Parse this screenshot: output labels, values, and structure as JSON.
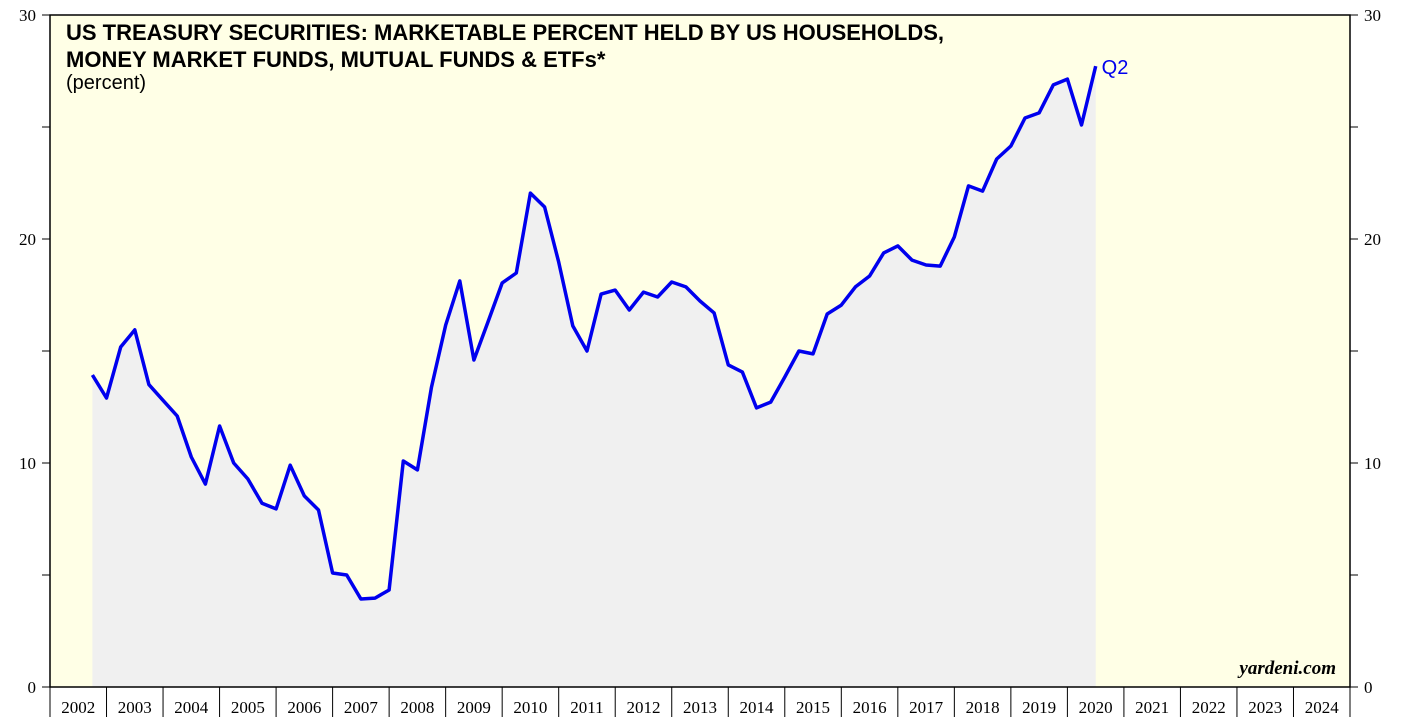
{
  "chart_data": {
    "type": "area",
    "title": [
      "US TREASURY SECURITIES: MARKETABLE PERCENT HELD BY US HOUSEHOLDS,",
      "MONEY MARKET FUNDS, MUTUAL FUNDS & ETFs*"
    ],
    "subtitle": "(percent)",
    "annotation": "Q2",
    "source": "yardeni.com",
    "categories": [
      "2002",
      "2003",
      "2004",
      "2005",
      "2006",
      "2007",
      "2008",
      "2009",
      "2010",
      "2011",
      "2012",
      "2013",
      "2014",
      "2015",
      "2016",
      "2017",
      "2018",
      "2019",
      "2020",
      "2021",
      "2022",
      "2023",
      "2024"
    ],
    "xlim": [
      2002,
      2025
    ],
    "xticks": [
      2002,
      2003,
      2004,
      2005,
      2006,
      2007,
      2008,
      2009,
      2010,
      2011,
      2012,
      2013,
      2014,
      2015,
      2016,
      2017,
      2018,
      2019,
      2020,
      2021,
      2022,
      2023,
      2024,
      2025
    ],
    "ylim": [
      0,
      30
    ],
    "yticks": [
      0,
      10,
      20,
      30
    ],
    "yticks_minor": [
      5,
      15,
      25
    ],
    "y2lim": [
      0,
      30
    ],
    "y2ticks": [
      0,
      10,
      20,
      30
    ],
    "x": [
      2002.75,
      2003,
      2003.25,
      2003.5,
      2003.75,
      2004,
      2004.25,
      2004.5,
      2004.75,
      2005,
      2005.25,
      2005.5,
      2005.75,
      2006,
      2006.25,
      2006.5,
      2006.75,
      2007,
      2007.25,
      2007.5,
      2007.75,
      2008,
      2008.25,
      2008.5,
      2008.75,
      2009,
      2009.25,
      2009.5,
      2009.75,
      2010,
      2010.25,
      2010.5,
      2010.75,
      2011,
      2011.25,
      2011.5,
      2011.75,
      2012,
      2012.25,
      2012.5,
      2012.75,
      2013,
      2013.25,
      2013.5,
      2013.75,
      2014,
      2014.25,
      2014.5,
      2014.75,
      2015,
      2015.25,
      2015.5,
      2015.75,
      2016,
      2016.25,
      2016.5,
      2016.75,
      2017,
      2017.25,
      2017.5,
      2017.75,
      2018,
      2018.25,
      2018.5,
      2018.75,
      2019,
      2019.25,
      2019.5,
      2019.75,
      2020,
      2020.25,
      2020.5
    ],
    "series": [
      {
        "name": "Percent held",
        "color": "#0000ee",
        "fill": "#f0f0f0",
        "values": [
          13.93,
          12.9,
          15.18,
          15.94,
          13.5,
          12.8,
          12.1,
          10.27,
          9.06,
          11.65,
          10.0,
          9.29,
          8.2,
          7.95,
          9.9,
          8.53,
          7.9,
          5.09,
          5.0,
          3.93,
          3.97,
          4.33,
          10.09,
          9.69,
          13.39,
          16.16,
          18.13,
          14.6,
          16.3,
          18.04,
          18.48,
          22.05,
          21.43,
          18.97,
          16.12,
          15.0,
          17.54,
          17.72,
          16.83,
          17.63,
          17.41,
          18.08,
          17.86,
          17.23,
          16.7,
          14.38,
          14.06,
          12.46,
          12.72,
          13.84,
          15.0,
          14.87,
          16.65,
          17.05,
          17.86,
          18.35,
          19.38,
          19.69,
          19.06,
          18.84,
          18.79,
          20.09,
          22.37,
          22.14,
          23.57,
          24.15,
          25.4,
          25.63,
          26.88,
          27.14,
          25.09,
          27.72
        ]
      }
    ],
    "background": "#ffffe6"
  }
}
